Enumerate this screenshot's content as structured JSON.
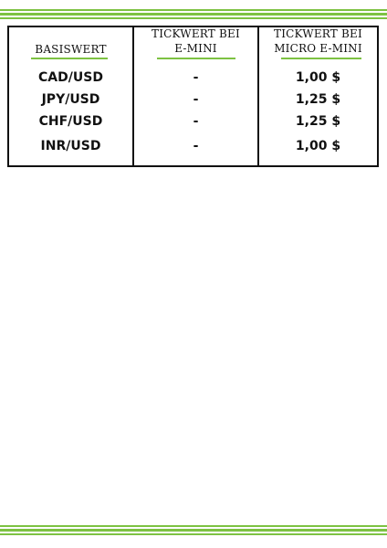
{
  "table": {
    "headers": [
      [
        "BASISWERT"
      ],
      [
        "TICKWERT BEI",
        "E-MINI"
      ],
      [
        "TICKWERT BEI",
        "MICRO E-MINI"
      ]
    ],
    "rows": [
      {
        "basiswert": "CAD/USD",
        "emini": "-",
        "micro": "1,00 $"
      },
      {
        "basiswert": "JPY/USD",
        "emini": "-",
        "micro": "1,25 $"
      },
      {
        "basiswert": "CHF/USD",
        "emini": "-",
        "micro": "1,25 $"
      },
      {
        "basiswert": "INR/USD",
        "emini": "-",
        "micro": "1,00 $"
      }
    ]
  },
  "colors": {
    "accent": "#7dc242",
    "text": "#111111",
    "border": "#111111"
  }
}
